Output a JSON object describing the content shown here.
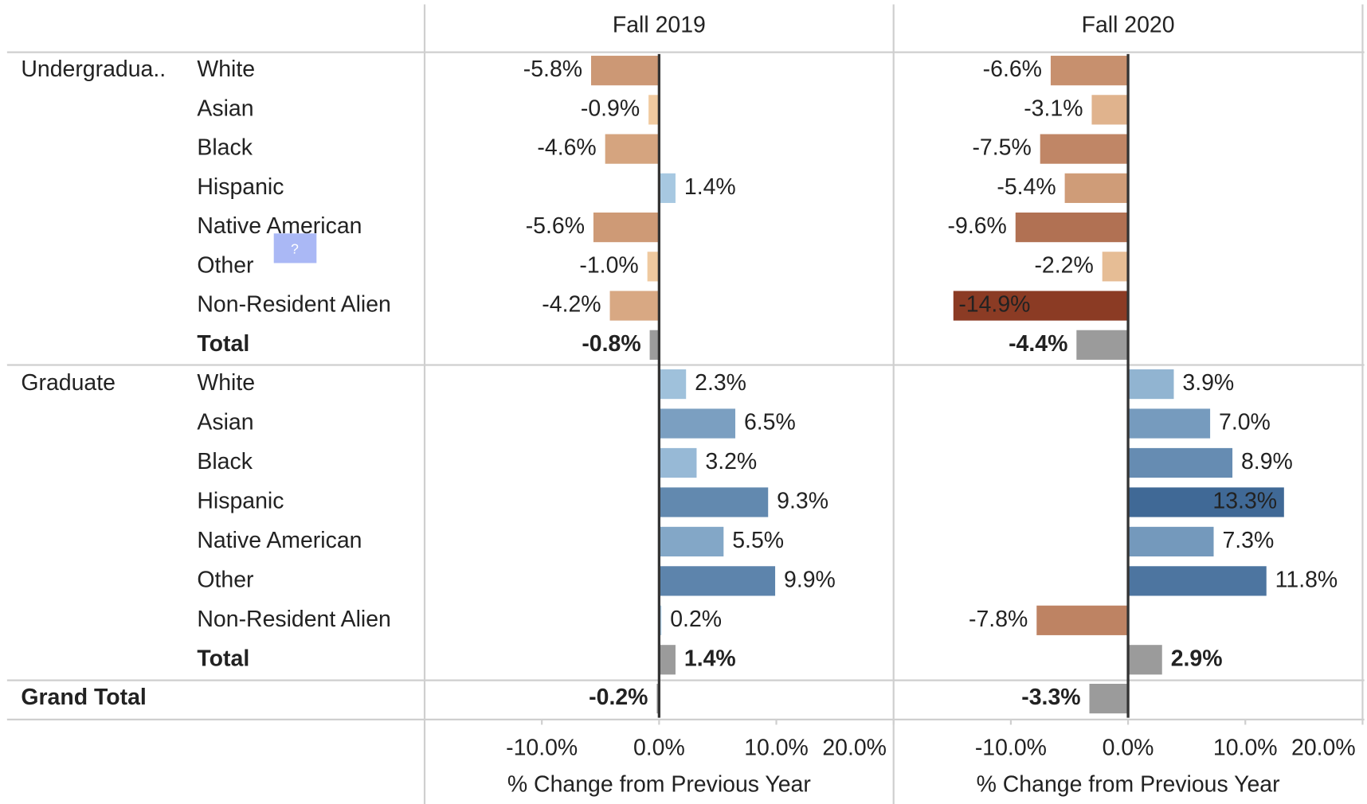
{
  "chart_data": {
    "type": "bar",
    "orientation": "horizontal",
    "groups": [
      {
        "name": "Undergradua..",
        "categories": [
          "White",
          "Asian",
          "Black",
          "Hispanic",
          "Native American",
          "Other",
          "Non-Resident Alien"
        ],
        "total_label": "Total"
      },
      {
        "name": "Graduate",
        "categories": [
          "White",
          "Asian",
          "Black",
          "Hispanic",
          "Native American",
          "Other",
          "Non-Resident Alien"
        ],
        "total_label": "Total"
      }
    ],
    "grand_total_label": "Grand Total",
    "series": [
      {
        "name": "Fall 2019",
        "values": [
          [
            -5.8,
            -0.9,
            -4.6,
            1.4,
            -5.6,
            -1.0,
            -4.2
          ],
          [
            2.3,
            6.5,
            3.2,
            9.3,
            5.5,
            9.9,
            0.2
          ]
        ],
        "value_labels": [
          [
            "-5.8%",
            "-0.9%",
            "-4.6%",
            "1.4%",
            "-5.6%",
            "-1.0%",
            "-4.2%"
          ],
          [
            "2.3%",
            "6.5%",
            "3.2%",
            "9.3%",
            "5.5%",
            "9.9%",
            "0.2%"
          ]
        ],
        "totals": [
          -0.8,
          1.4
        ],
        "total_labels": [
          "-0.8%",
          "1.4%"
        ],
        "grand_total": -0.2,
        "grand_total_label": "-0.2%"
      },
      {
        "name": "Fall 2020",
        "values": [
          [
            -6.6,
            -3.1,
            -7.5,
            -5.4,
            -9.6,
            -2.2,
            -14.9
          ],
          [
            3.9,
            7.0,
            8.9,
            13.3,
            7.3,
            11.8,
            -7.8
          ]
        ],
        "value_labels": [
          [
            "-6.6%",
            "-3.1%",
            "-7.5%",
            "-5.4%",
            "-9.6%",
            "-2.2%",
            "-14.9%"
          ],
          [
            "3.9%",
            "7.0%",
            "8.9%",
            "13.3%",
            "7.3%",
            "11.8%",
            "-7.8%"
          ]
        ],
        "totals": [
          -4.4,
          2.9
        ],
        "total_labels": [
          "-4.4%",
          "2.9%"
        ],
        "grand_total": -3.3,
        "grand_total_label": "-3.3%"
      }
    ],
    "x_label": "% Change from Previous Year",
    "xlim": [
      -20,
      20
    ],
    "xticks": [
      {
        "value": -10,
        "label": "-10.0%"
      },
      {
        "value": 0,
        "label": "0.0%"
      },
      {
        "value": 10,
        "label": "10.0%"
      },
      {
        "value": 20,
        "label": "20.0%"
      }
    ],
    "negative_colors": [
      "#f6d3a8",
      "#8b3b24"
    ],
    "positive_colors": [
      "#b3d3ea",
      "#325c8c"
    ],
    "total_color": "#9b9b9b",
    "zero_line_color": "#333333",
    "icon_label": "?"
  }
}
